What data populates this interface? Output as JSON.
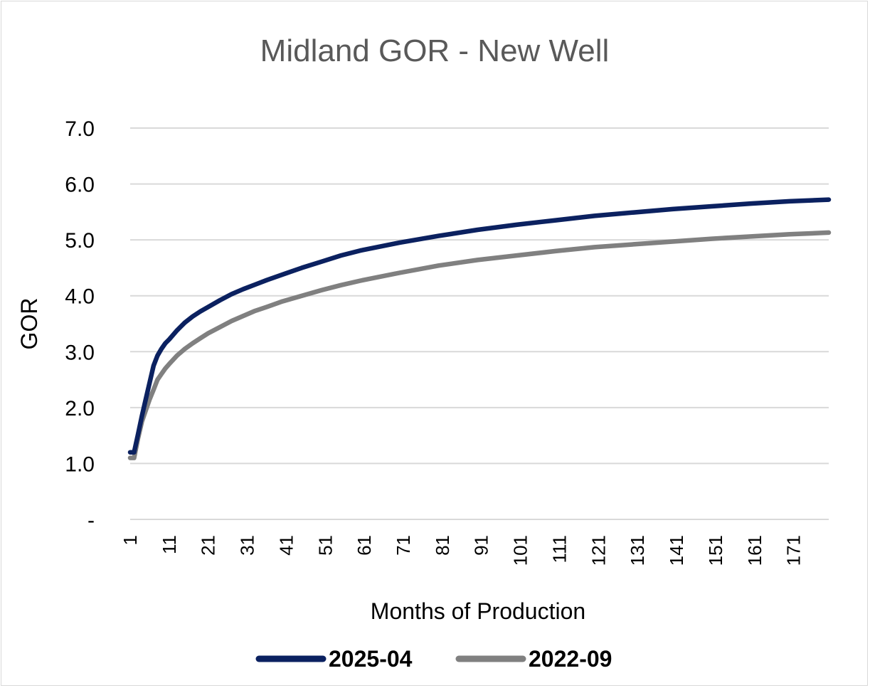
{
  "chart_data": {
    "type": "line",
    "title": "Midland GOR - New Well",
    "xlabel": "Months of Production",
    "ylabel": "GOR",
    "ylim": [
      0,
      7
    ],
    "yticks": [
      "-",
      "1.0",
      "2.0",
      "3.0",
      "4.0",
      "5.0",
      "6.0",
      "7.0"
    ],
    "xticks": [
      "1",
      "11",
      "21",
      "31",
      "41",
      "51",
      "61",
      "71",
      "81",
      "91",
      "101",
      "111",
      "121",
      "131",
      "141",
      "151",
      "161",
      "171"
    ],
    "xrange": [
      1,
      180
    ],
    "grid": "horizontal",
    "legend_position": "bottom",
    "x": [
      1,
      2,
      3,
      4,
      5,
      6,
      7,
      8,
      9,
      10,
      11,
      13,
      15,
      17,
      19,
      21,
      24,
      27,
      30,
      33,
      36,
      40,
      45,
      50,
      55,
      60,
      70,
      80,
      90,
      100,
      110,
      120,
      130,
      140,
      150,
      160,
      170,
      180
    ],
    "series": [
      {
        "name": "2025-04",
        "color": "#0b2160",
        "values": [
          1.2,
          1.2,
          1.52,
          1.85,
          2.15,
          2.45,
          2.75,
          2.93,
          3.05,
          3.15,
          3.22,
          3.38,
          3.52,
          3.63,
          3.72,
          3.8,
          3.92,
          4.03,
          4.12,
          4.2,
          4.28,
          4.38,
          4.5,
          4.61,
          4.72,
          4.81,
          4.95,
          5.07,
          5.18,
          5.27,
          5.35,
          5.43,
          5.49,
          5.55,
          5.6,
          5.65,
          5.69,
          5.72
        ]
      },
      {
        "name": "2022-09",
        "color": "#808080",
        "values": [
          1.1,
          1.1,
          1.45,
          1.75,
          1.95,
          2.15,
          2.32,
          2.5,
          2.6,
          2.7,
          2.78,
          2.93,
          3.05,
          3.15,
          3.24,
          3.33,
          3.44,
          3.55,
          3.64,
          3.73,
          3.8,
          3.9,
          4.0,
          4.1,
          4.19,
          4.27,
          4.41,
          4.54,
          4.64,
          4.72,
          4.8,
          4.87,
          4.92,
          4.97,
          5.02,
          5.06,
          5.1,
          5.13
        ]
      }
    ]
  }
}
